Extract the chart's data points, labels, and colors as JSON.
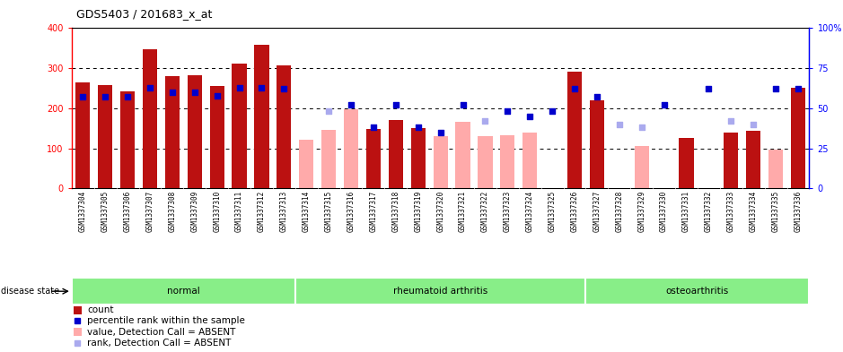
{
  "title": "GDS5403 / 201683_x_at",
  "samples": [
    "GSM1337304",
    "GSM1337305",
    "GSM1337306",
    "GSM1337307",
    "GSM1337308",
    "GSM1337309",
    "GSM1337310",
    "GSM1337311",
    "GSM1337312",
    "GSM1337313",
    "GSM1337314",
    "GSM1337315",
    "GSM1337316",
    "GSM1337317",
    "GSM1337318",
    "GSM1337319",
    "GSM1337320",
    "GSM1337321",
    "GSM1337322",
    "GSM1337323",
    "GSM1337324",
    "GSM1337325",
    "GSM1337326",
    "GSM1337327",
    "GSM1337328",
    "GSM1337329",
    "GSM1337330",
    "GSM1337331",
    "GSM1337332",
    "GSM1337333",
    "GSM1337334",
    "GSM1337335",
    "GSM1337336"
  ],
  "count": [
    265,
    257,
    243,
    348,
    281,
    282,
    255,
    312,
    358,
    308,
    null,
    null,
    null,
    148,
    170,
    150,
    null,
    null,
    null,
    null,
    null,
    null,
    292,
    220,
    null,
    null,
    null,
    125,
    null,
    140,
    144,
    null,
    252
  ],
  "count_absent": [
    null,
    null,
    null,
    null,
    null,
    null,
    null,
    null,
    null,
    null,
    121,
    145,
    197,
    null,
    null,
    null,
    130,
    165,
    130,
    133,
    140,
    null,
    null,
    null,
    null,
    105,
    null,
    null,
    null,
    null,
    null,
    97,
    null
  ],
  "percentile_val": [
    57,
    57,
    57,
    63,
    60,
    60,
    58,
    63,
    63,
    62,
    null,
    null,
    52,
    38,
    52,
    38,
    35,
    52,
    null,
    48,
    45,
    48,
    62,
    57,
    null,
    null,
    52,
    null,
    62,
    null,
    null,
    62,
    62
  ],
  "percentile_absent_val": [
    null,
    null,
    null,
    null,
    null,
    null,
    null,
    null,
    null,
    null,
    null,
    48,
    null,
    null,
    null,
    null,
    null,
    null,
    42,
    null,
    null,
    null,
    null,
    null,
    40,
    38,
    null,
    null,
    null,
    42,
    40,
    null,
    null
  ],
  "disease_groups": [
    {
      "label": "normal",
      "start": 0,
      "end": 9
    },
    {
      "label": "rheumatoid arthritis",
      "start": 10,
      "end": 22
    },
    {
      "label": "osteoarthritis",
      "start": 23,
      "end": 32
    }
  ],
  "ylim_left": [
    0,
    400
  ],
  "ylim_right": [
    0,
    100
  ],
  "yticks_left": [
    0,
    100,
    200,
    300,
    400
  ],
  "yticks_right": [
    0,
    25,
    50,
    75,
    100
  ],
  "bar_color_present": "#bb1111",
  "bar_color_absent": "#ffaaaa",
  "dot_color_present": "#0000cc",
  "dot_color_absent": "#aaaaee",
  "disease_bar_color": "#88ee88",
  "xtick_bg_color": "#cccccc",
  "legend_items": [
    {
      "label": "count",
      "color": "#bb1111",
      "type": "bar"
    },
    {
      "label": "percentile rank within the sample",
      "color": "#0000cc",
      "type": "square"
    },
    {
      "label": "value, Detection Call = ABSENT",
      "color": "#ffaaaa",
      "type": "bar"
    },
    {
      "label": "rank, Detection Call = ABSENT",
      "color": "#aaaaee",
      "type": "square"
    }
  ]
}
